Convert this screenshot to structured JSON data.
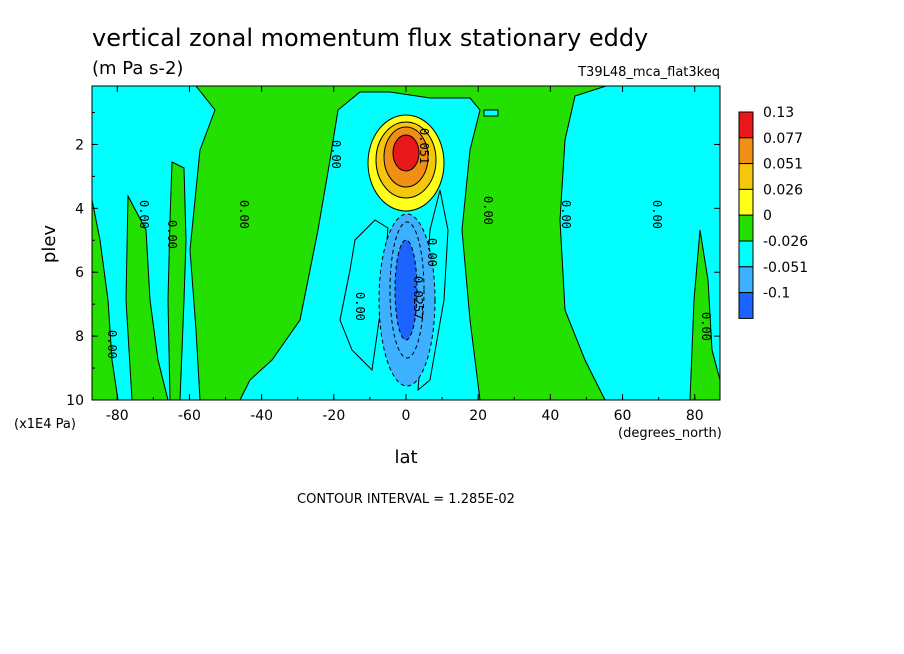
{
  "chart_data": {
    "type": "heatmap",
    "title": "vertical zonal momentum flux stationary eddy",
    "units": "(m Pa s-2)",
    "experiment": "T39L48_mca_flat3keq",
    "xlabel": "lat",
    "x_units": "(degrees_north)",
    "ylabel": "plev",
    "y_units": "(x1E4 Pa)",
    "xlim": [
      -87,
      87
    ],
    "ylim": [
      10,
      0.17
    ],
    "x_ticks": [
      "-80",
      "-60",
      "-40",
      "-20",
      "0",
      "20",
      "40",
      "60",
      "80"
    ],
    "y_ticks": [
      "2",
      "4",
      "6",
      "8",
      "10"
    ],
    "contour_interval": "CONTOUR INTERVAL = 1.285E-02",
    "colorbar": {
      "labels": [
        "0.13",
        "0.077",
        "0.051",
        "0.026",
        "0",
        "-0.026",
        "-0.051",
        "-0.1"
      ],
      "colors": [
        "#e8171a",
        "#f08e15",
        "#f5c70c",
        "#ffff19",
        "#23e000",
        "#00ffff",
        "#3db1ff",
        "#1c64ff"
      ]
    },
    "contour_labels": [
      "0.00",
      "0.0257",
      "0.051"
    ],
    "features": [
      {
        "name": "positive maximum",
        "lat": 0,
        "plev": 2.3,
        "value": 0.13
      },
      {
        "name": "negative minimum",
        "lat": 0,
        "plev": 6.5,
        "value": -0.1
      }
    ]
  }
}
